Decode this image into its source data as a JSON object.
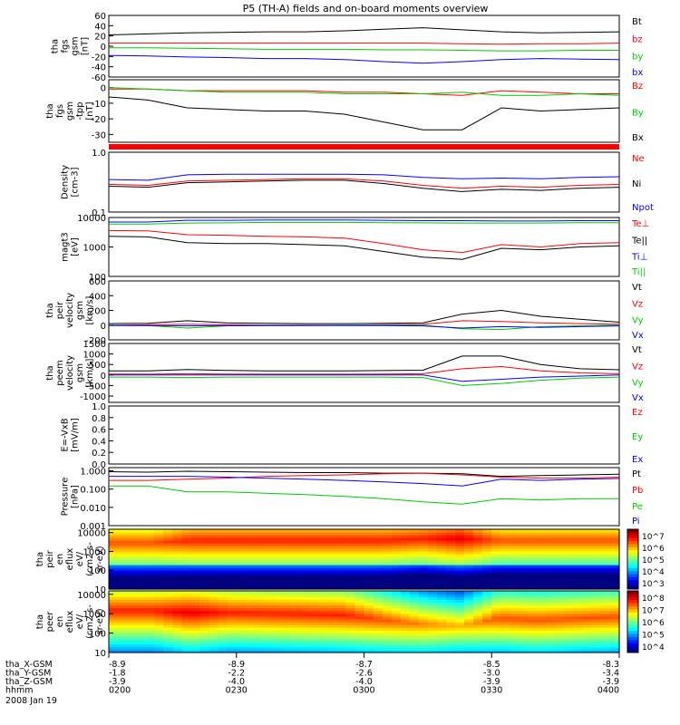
{
  "title": "P5 (TH-A) fields and on-board moments overview",
  "chart_data": [
    {
      "type": "line",
      "id": "fgs",
      "ylabel": [
        "tha",
        "fgs",
        "gsm",
        "[nT]"
      ],
      "yticks": [
        "60",
        "40",
        "20",
        "0",
        "-20",
        "-40",
        "-60"
      ],
      "ylim": [
        -60,
        60
      ],
      "series": [
        {
          "name": "Bt",
          "color": "#000000",
          "values": [
            22,
            24,
            26,
            27,
            28,
            28,
            30,
            33,
            36,
            32,
            28,
            26,
            27,
            28
          ]
        },
        {
          "name": "bz",
          "color": "#ff0000",
          "values": [
            6,
            6,
            6,
            6,
            6,
            6,
            6,
            6,
            6,
            5,
            4,
            5,
            5,
            6
          ]
        },
        {
          "name": "by",
          "color": "#00cc00",
          "values": [
            -3,
            -3,
            -4,
            -5,
            -6,
            -6,
            -6,
            -7,
            -7,
            -8,
            -9,
            -9,
            -8,
            -8
          ]
        },
        {
          "name": "bx",
          "color": "#0000ff",
          "values": [
            -18,
            -19,
            -21,
            -22,
            -24,
            -24,
            -26,
            -30,
            -33,
            -30,
            -26,
            -24,
            -25,
            -26
          ]
        }
      ]
    },
    {
      "type": "line",
      "id": "fgs_zoom",
      "ylabel": [
        "tha",
        "fgs",
        "gsm",
        "-tpp",
        "[nT]"
      ],
      "yticks": [
        "0",
        "-10",
        "-20",
        "-30"
      ],
      "ylim": [
        -35,
        5
      ],
      "series": [
        {
          "name": "Bz",
          "color": "#ff0000",
          "values": [
            -1,
            -1,
            -2,
            -2,
            -2,
            -2,
            -3,
            -3,
            -4,
            -5,
            -2,
            -3,
            -4,
            -4
          ]
        },
        {
          "name": "By",
          "color": "#00cc00",
          "values": [
            0,
            -1,
            -2,
            -3,
            -3,
            -3,
            -4,
            -4,
            -4,
            -3,
            -5,
            -5,
            -4,
            -5
          ]
        },
        {
          "name": "Bx",
          "color": "#000000",
          "values": [
            -6,
            -8,
            -13,
            -14,
            -15,
            -15,
            -17,
            -22,
            -27,
            -27,
            -13,
            -15,
            -14,
            -13
          ]
        }
      ]
    },
    {
      "type": "line",
      "id": "density",
      "scale": "log",
      "ylabel": [
        "Density",
        "[cm-3]"
      ],
      "yticks": [
        "1.0",
        "0.1"
      ],
      "ylim": [
        0.1,
        1.0
      ],
      "series": [
        {
          "name": "Ne",
          "color": "#ff0000",
          "values": [
            0.29,
            0.28,
            0.33,
            0.34,
            0.35,
            0.36,
            0.36,
            0.33,
            0.28,
            0.25,
            0.27,
            0.26,
            0.28,
            0.29
          ]
        },
        {
          "name": "Ni",
          "color": "#000000",
          "values": [
            0.27,
            0.26,
            0.31,
            0.32,
            0.33,
            0.34,
            0.34,
            0.3,
            0.25,
            0.22,
            0.24,
            0.23,
            0.25,
            0.26
          ]
        },
        {
          "name": "Npot",
          "color": "#0000ff",
          "values": [
            0.35,
            0.34,
            0.42,
            0.43,
            0.43,
            0.43,
            0.43,
            0.42,
            0.38,
            0.36,
            0.37,
            0.36,
            0.38,
            0.39
          ]
        }
      ]
    },
    {
      "type": "line",
      "id": "temperature",
      "scale": "log",
      "ylabel": [
        "magt3",
        "[eV]"
      ],
      "yticks": [
        "10000",
        "1000",
        "100"
      ],
      "ylim": [
        100,
        10000
      ],
      "series": [
        {
          "name": "Te⊥",
          "color": "#ff0000",
          "values": [
            3600,
            3500,
            2600,
            2500,
            2300,
            2200,
            2000,
            1300,
            800,
            650,
            1200,
            1000,
            1300,
            1400
          ]
        },
        {
          "name": "Te||",
          "color": "#000000",
          "values": [
            2300,
            2200,
            1400,
            1300,
            1300,
            1200,
            1100,
            700,
            450,
            380,
            900,
            800,
            1000,
            1100
          ]
        },
        {
          "name": "Ti⊥",
          "color": "#0000ff",
          "values": [
            7000,
            7000,
            8000,
            8000,
            8200,
            8200,
            8200,
            8000,
            7800,
            7800,
            7600,
            7600,
            7800,
            7800
          ]
        },
        {
          "name": "Ti||",
          "color": "#00cc00",
          "values": [
            6000,
            6000,
            6500,
            6600,
            6800,
            6800,
            6800,
            6700,
            6600,
            6500,
            6500,
            6500,
            6700,
            6700
          ]
        }
      ]
    },
    {
      "type": "line",
      "id": "peir_velocity",
      "ylabel": [
        "tha",
        "peir",
        "velocity",
        "gsm",
        "[km/s]"
      ],
      "yticks": [
        "600",
        "400",
        "200",
        "0",
        "-200"
      ],
      "ylim": [
        -200,
        600
      ],
      "series": [
        {
          "name": "Vt",
          "color": "#000000",
          "values": [
            20,
            25,
            60,
            30,
            25,
            20,
            20,
            25,
            30,
            150,
            200,
            120,
            80,
            40
          ]
        },
        {
          "name": "Vz",
          "color": "#ff0000",
          "values": [
            0,
            5,
            10,
            5,
            0,
            0,
            0,
            5,
            10,
            60,
            50,
            30,
            20,
            10
          ]
        },
        {
          "name": "Vy",
          "color": "#00cc00",
          "values": [
            0,
            -5,
            -40,
            -10,
            -5,
            -5,
            0,
            0,
            0,
            -50,
            -60,
            -20,
            -10,
            0
          ]
        },
        {
          "name": "Vx",
          "color": "#0000ff",
          "values": [
            -5,
            -5,
            -10,
            -5,
            -5,
            -5,
            -5,
            -5,
            -10,
            -40,
            -20,
            -30,
            -20,
            -10
          ]
        }
      ]
    },
    {
      "type": "line",
      "id": "peem_velocity",
      "ylabel": [
        "tha",
        "peem",
        "velocity",
        "gsm",
        "[km/s]"
      ],
      "yticks": [
        "1500",
        "1000",
        "500",
        "0",
        "-500",
        "-1000"
      ],
      "ylim": [
        -1300,
        1500
      ],
      "series": [
        {
          "name": "Vt",
          "color": "#000000",
          "values": [
            200,
            200,
            260,
            220,
            200,
            200,
            200,
            210,
            230,
            900,
            900,
            500,
            300,
            250
          ]
        },
        {
          "name": "Vz",
          "color": "#ff0000",
          "values": [
            50,
            40,
            60,
            50,
            40,
            40,
            40,
            50,
            60,
            300,
            400,
            200,
            100,
            60
          ]
        },
        {
          "name": "Vy",
          "color": "#00cc00",
          "values": [
            -100,
            -100,
            -120,
            -100,
            -100,
            -100,
            -100,
            -100,
            -120,
            -500,
            -400,
            -250,
            -150,
            -100
          ]
        },
        {
          "name": "Vx",
          "color": "#0000ff",
          "values": [
            0,
            0,
            0,
            0,
            0,
            0,
            0,
            0,
            0,
            -300,
            -200,
            -100,
            -50,
            0
          ]
        }
      ]
    },
    {
      "type": "line",
      "id": "efield",
      "ylabel": [
        "E=-VxB",
        "[mV/m]"
      ],
      "yticks": [
        "1.0",
        "0.8",
        "0.6",
        "0.4",
        "0.2",
        "0.0"
      ],
      "ylim": [
        0,
        1.0
      ],
      "series": [
        {
          "name": "Ez",
          "color": "#ff0000",
          "values": []
        },
        {
          "name": "Ey",
          "color": "#00cc00",
          "values": []
        },
        {
          "name": "Ex",
          "color": "#0000ff",
          "values": []
        }
      ]
    },
    {
      "type": "line",
      "id": "pressure",
      "scale": "log",
      "ylabel": [
        "Pressure",
        "[nPa]"
      ],
      "yticks": [
        "1.000",
        "0.100",
        "0.010",
        "0.001"
      ],
      "ylim": [
        0.001,
        1.5
      ],
      "series": [
        {
          "name": "Pt",
          "color": "#000000",
          "values": [
            0.9,
            0.85,
            0.95,
            0.9,
            0.85,
            0.8,
            0.8,
            0.75,
            0.75,
            0.7,
            0.5,
            0.55,
            0.6,
            0.65
          ]
        },
        {
          "name": "Pb",
          "color": "#ff0000",
          "values": [
            0.3,
            0.3,
            0.35,
            0.4,
            0.5,
            0.55,
            0.6,
            0.7,
            0.75,
            0.6,
            0.45,
            0.4,
            0.4,
            0.45
          ]
        },
        {
          "name": "Pe",
          "color": "#00cc00",
          "values": [
            0.15,
            0.15,
            0.07,
            0.07,
            0.06,
            0.05,
            0.04,
            0.03,
            0.02,
            0.015,
            0.03,
            0.025,
            0.03,
            0.03
          ]
        },
        {
          "name": "Pi",
          "color": "#0000ff",
          "values": [
            0.5,
            0.5,
            0.5,
            0.45,
            0.4,
            0.35,
            0.3,
            0.25,
            0.2,
            0.15,
            0.35,
            0.3,
            0.35,
            0.38
          ]
        }
      ]
    },
    {
      "type": "heatmap",
      "id": "peir_spectrogram",
      "scale": "log",
      "ylabel": [
        "tha",
        "peir",
        "en",
        "eflux",
        "eV/",
        "(cm2-s-",
        "sr-eV)"
      ],
      "yticks": [
        "10000",
        "1000",
        "100",
        "10"
      ],
      "colorbar_ticks": [
        "10^7",
        "10^6",
        "10^5",
        "10^4",
        "10^3"
      ],
      "peak_energy_eV": [
        3000,
        3000,
        4000,
        4000,
        4000,
        4000,
        4000,
        4000,
        5000,
        5000,
        4000,
        4000,
        4000,
        4000
      ],
      "peak_level": [
        0.8,
        0.8,
        0.85,
        0.85,
        0.85,
        0.85,
        0.85,
        0.85,
        0.85,
        0.9,
        0.8,
        0.8,
        0.8,
        0.8
      ]
    },
    {
      "type": "heatmap",
      "id": "peer_spectrogram",
      "scale": "log",
      "ylabel": [
        "tha",
        "peer",
        "en",
        "eflux",
        "eV/",
        "(cm2-s-",
        "sr-eV)"
      ],
      "yticks": [
        "10000",
        "1000",
        "100",
        "10"
      ],
      "colorbar_ticks": [
        "10^8",
        "10^7",
        "10^6",
        "10^5",
        "10^4"
      ],
      "peak_energy_eV": [
        1500,
        1500,
        1200,
        1200,
        1100,
        1000,
        900,
        500,
        300,
        250,
        600,
        500,
        600,
        700
      ],
      "peak_level": [
        0.85,
        0.85,
        0.9,
        0.85,
        0.85,
        0.85,
        0.85,
        0.8,
        0.75,
        0.7,
        0.8,
        0.8,
        0.8,
        0.8
      ]
    }
  ],
  "axis": {
    "rows": [
      {
        "label": "tha_X-GSM",
        "values": [
          "-8.9",
          "-8.9",
          "-8.7",
          "-8.5",
          "-8.3"
        ]
      },
      {
        "label": "tha_Y-GSM",
        "values": [
          "-1.8",
          "-2.2",
          "-2.6",
          "-3.0",
          "-3.4"
        ]
      },
      {
        "label": "tha_Z-GSM",
        "values": [
          "-3.9",
          "-4.0",
          "-4.0",
          "-3.9",
          "-3.9"
        ]
      },
      {
        "label": "hhmm",
        "values": [
          "0200",
          "0230",
          "0300",
          "0330",
          "0400"
        ]
      }
    ],
    "date": "2008 Jan 19"
  }
}
